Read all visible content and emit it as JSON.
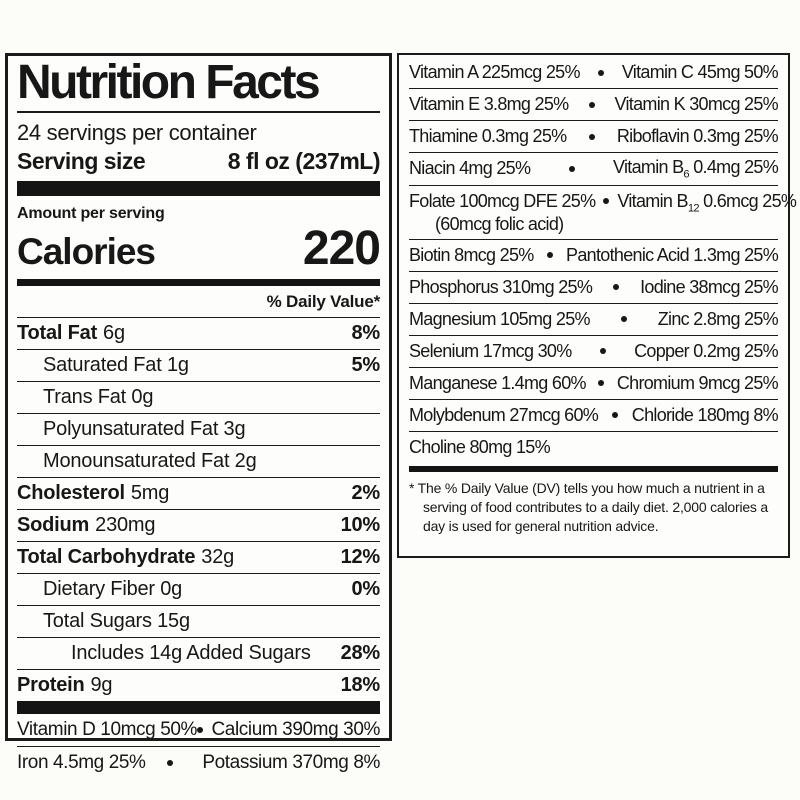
{
  "colors": {
    "ink": "#171717",
    "paper": "#fcfcf9"
  },
  "label": {
    "title": "Nutrition Facts",
    "servings_per_container": "24 servings per container",
    "serving_size_label": "Serving size",
    "serving_size_value": "8 fl oz (237mL)",
    "amount_per_serving": "Amount per serving",
    "calories_label": "Calories",
    "calories_value": "220",
    "daily_value_header": "% Daily Value*",
    "nutrients": [
      {
        "name": "Total Fat",
        "amount": "6g",
        "dv": "8%"
      },
      {
        "name": "Saturated Fat 1g",
        "amount": "",
        "dv": "5%"
      },
      {
        "name": "Trans Fat 0g",
        "amount": "",
        "dv": ""
      },
      {
        "name": "Polyunsaturated Fat 3g",
        "amount": "",
        "dv": ""
      },
      {
        "name": "Monounsaturated Fat 2g",
        "amount": "",
        "dv": ""
      },
      {
        "name": "Cholesterol",
        "amount": "5mg",
        "dv": "2%"
      },
      {
        "name": "Sodium",
        "amount": "230mg",
        "dv": "10%"
      },
      {
        "name": "Total Carbohydrate",
        "amount": "32g",
        "dv": "12%"
      },
      {
        "name": "Dietary Fiber 0g",
        "amount": "",
        "dv": "0%"
      },
      {
        "name": "Total Sugars 15g",
        "amount": "",
        "dv": ""
      },
      {
        "name": "Includes 14g Added Sugars",
        "amount": "",
        "dv": "28%"
      },
      {
        "name": "Protein",
        "amount": "9g",
        "dv": "18%"
      }
    ],
    "micro_rows": [
      {
        "left": "Vitamin D 10mcg 50%",
        "right": "Calcium 390mg 30%"
      },
      {
        "left": "Iron 4.5mg 25%",
        "right": "Potassium 370mg 8%"
      }
    ],
    "vitamin_rows": [
      {
        "left": "Vitamin A 225mcg 25%",
        "right": "Vitamin C 45mg 50%"
      },
      {
        "left": "Vitamin E 3.8mg 25%",
        "right": "Vitamin K 30mcg 25%"
      },
      {
        "left": "Thiamine 0.3mg 25%",
        "right": "Riboflavin 0.3mg 25%"
      },
      {
        "left": "Niacin 4mg 25%",
        "right_pre": "Vitamin B",
        "right_sub": "6",
        "right_post": " 0.4mg 25%"
      },
      {
        "left": "Folate 100mcg DFE 25%",
        "left_note": "(60mcg folic acid)",
        "right_pre": "Vitamin B",
        "right_sub": "12",
        "right_post": " 0.6mcg 25%"
      },
      {
        "left": "Biotin 8mcg 25%",
        "right": "Pantothenic Acid 1.3mg 25%"
      },
      {
        "left": "Phosphorus 310mg 25%",
        "right": "Iodine 38mcg 25%"
      },
      {
        "left": "Magnesium 105mg 25%",
        "right": "Zinc 2.8mg 25%"
      },
      {
        "left": "Selenium 17mcg 30%",
        "right": "Copper 0.2mg 25%"
      },
      {
        "left": "Manganese 1.4mg 60%",
        "right": "Chromium 9mcg 25%"
      },
      {
        "left": "Molybdenum 27mcg 60%",
        "right": "Chloride 180mg 8%"
      },
      {
        "left": "Choline 80mg 15%",
        "right": ""
      }
    ],
    "footnote": "* The % Daily Value (DV) tells you how much a nutrient in a serving of food contributes to a daily diet. 2,000 calories a day is used for general nutrition advice."
  }
}
